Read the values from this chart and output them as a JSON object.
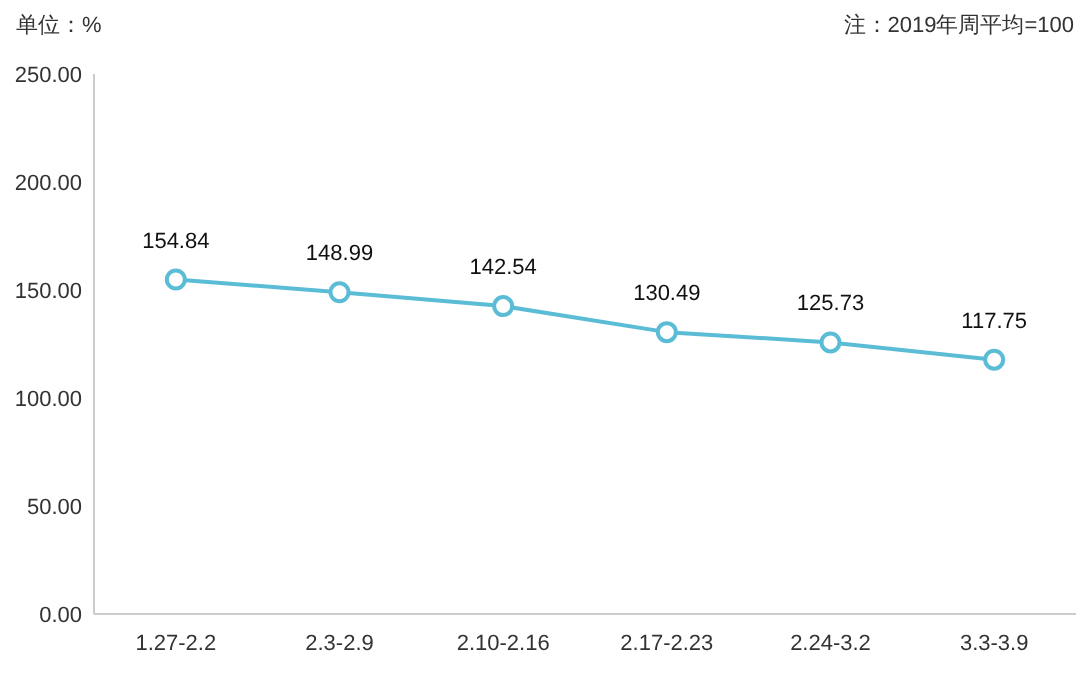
{
  "chart_data": {
    "type": "line",
    "categories": [
      "1.27-2.2",
      "2.3-2.9",
      "2.10-2.16",
      "2.17-2.23",
      "2.24-3.2",
      "3.3-3.9"
    ],
    "series": [
      {
        "color": "#5bbcd6",
        "values": [
          154.84,
          148.99,
          142.54,
          130.49,
          125.73,
          117.75
        ]
      }
    ],
    "ylim": [
      0,
      250
    ],
    "yticks": [
      {
        "value": 0,
        "label": "0.00"
      },
      {
        "value": 50,
        "label": "50.00"
      },
      {
        "value": 100,
        "label": "100.00"
      },
      {
        "value": 150,
        "label": "150.00"
      },
      {
        "value": 200,
        "label": "200.00"
      },
      {
        "value": 250,
        "label": "250.00"
      }
    ],
    "marker": "circle",
    "data_labels": true,
    "annotations": [
      "单位：%",
      "注：2019年周平均=100"
    ]
  }
}
